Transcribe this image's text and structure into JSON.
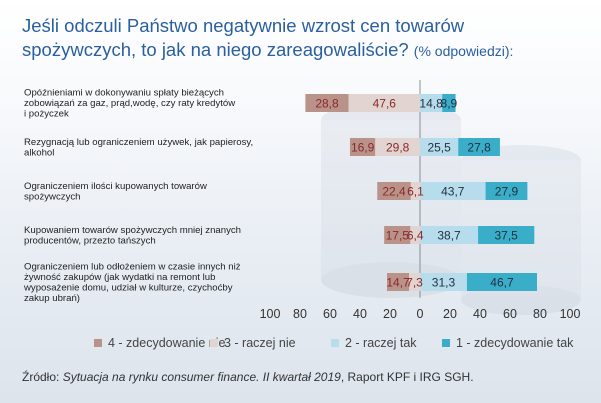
{
  "title": "Jeśli odczuli Państwo negatywnie wzrost cen towarów spożywczych, to jak na niego zareagowaliście?",
  "title_note": "(% odpowiedzi):",
  "source_prefix": "Źródło: ",
  "source_italic": "Sytuacja na rynku consumer finance. II kwartał 2019",
  "source_suffix": ", Raport KPF i IRG SGH.",
  "colors": {
    "4 - zdecydowanie nie": "#b9928a",
    "3 - raczej nie": "#e2d4d0",
    "2 - raczej tak": "#b7dcec",
    "1 - zdecydowanie tak": "#3aaec9",
    "negative_label": "#8a2a2a",
    "positive_label": "#1f2f3f"
  },
  "chart_data": {
    "type": "bar",
    "orientation": "horizontal-diverging",
    "categories": [
      [
        "Opóźnieniami w dokonywaniu spłaty bieżących",
        "zobowiązań za gaz, prąd,wodę, czy raty kredytów",
        "i pożyczek"
      ],
      [
        "Rezygnacją lub ograniczeniem używek, jak papierosy,",
        "alkohol"
      ],
      [
        "Ograniczeniem ilości kupowanych towarów",
        "spożywczych"
      ],
      [
        "Kupowaniem towarów spożywczych mniej znanych",
        "producentów, przezto tańszych"
      ],
      [
        "Ograniczeniem lub odłożeniem w czasie innych niż",
        "żywność zakupów (jak wydatki na remont lub",
        "wyposażenie domu, udział w kulturze, czychoćby",
        "zakup ubrań)"
      ]
    ],
    "series": [
      {
        "name": "4 - zdecydowanie nie",
        "side": "negative",
        "values": [
          28.8,
          16.9,
          22.4,
          17.5,
          14.7
        ]
      },
      {
        "name": "3 - raczej nie",
        "side": "negative",
        "values": [
          47.6,
          29.8,
          6.1,
          6.4,
          7.3
        ]
      },
      {
        "name": "2 - raczej tak",
        "side": "positive",
        "values": [
          14.8,
          25.5,
          43.7,
          38.7,
          31.3
        ]
      },
      {
        "name": "1 - zdecydowanie tak",
        "side": "positive",
        "values": [
          8.9,
          27.8,
          27.9,
          37.5,
          46.7
        ]
      }
    ],
    "value_labels": [
      [
        "28,8",
        "47,6",
        "14,8",
        "8,9"
      ],
      [
        "16,9",
        "29,8",
        "25,5",
        "27,8"
      ],
      [
        "22,4",
        "6,1",
        "43,7",
        "27,9"
      ],
      [
        "17,5",
        "6,4",
        "38,7",
        "37,5"
      ],
      [
        "14,7",
        "7,3",
        "31,3",
        "46,7"
      ]
    ],
    "xlim": [
      -100,
      100
    ],
    "x_ticks": [
      -100,
      -80,
      -60,
      -40,
      -20,
      0,
      20,
      40,
      60,
      80,
      100
    ],
    "x_tick_labels": [
      "100",
      "80",
      "60",
      "40",
      "20",
      "0",
      "20",
      "40",
      "60",
      "80",
      "100"
    ],
    "legend": [
      "4 - zdecydowanie nie",
      "3 - raczej nie",
      "2 - raczej tak",
      "1 - zdecydowanie tak"
    ],
    "legend_position": "bottom"
  }
}
